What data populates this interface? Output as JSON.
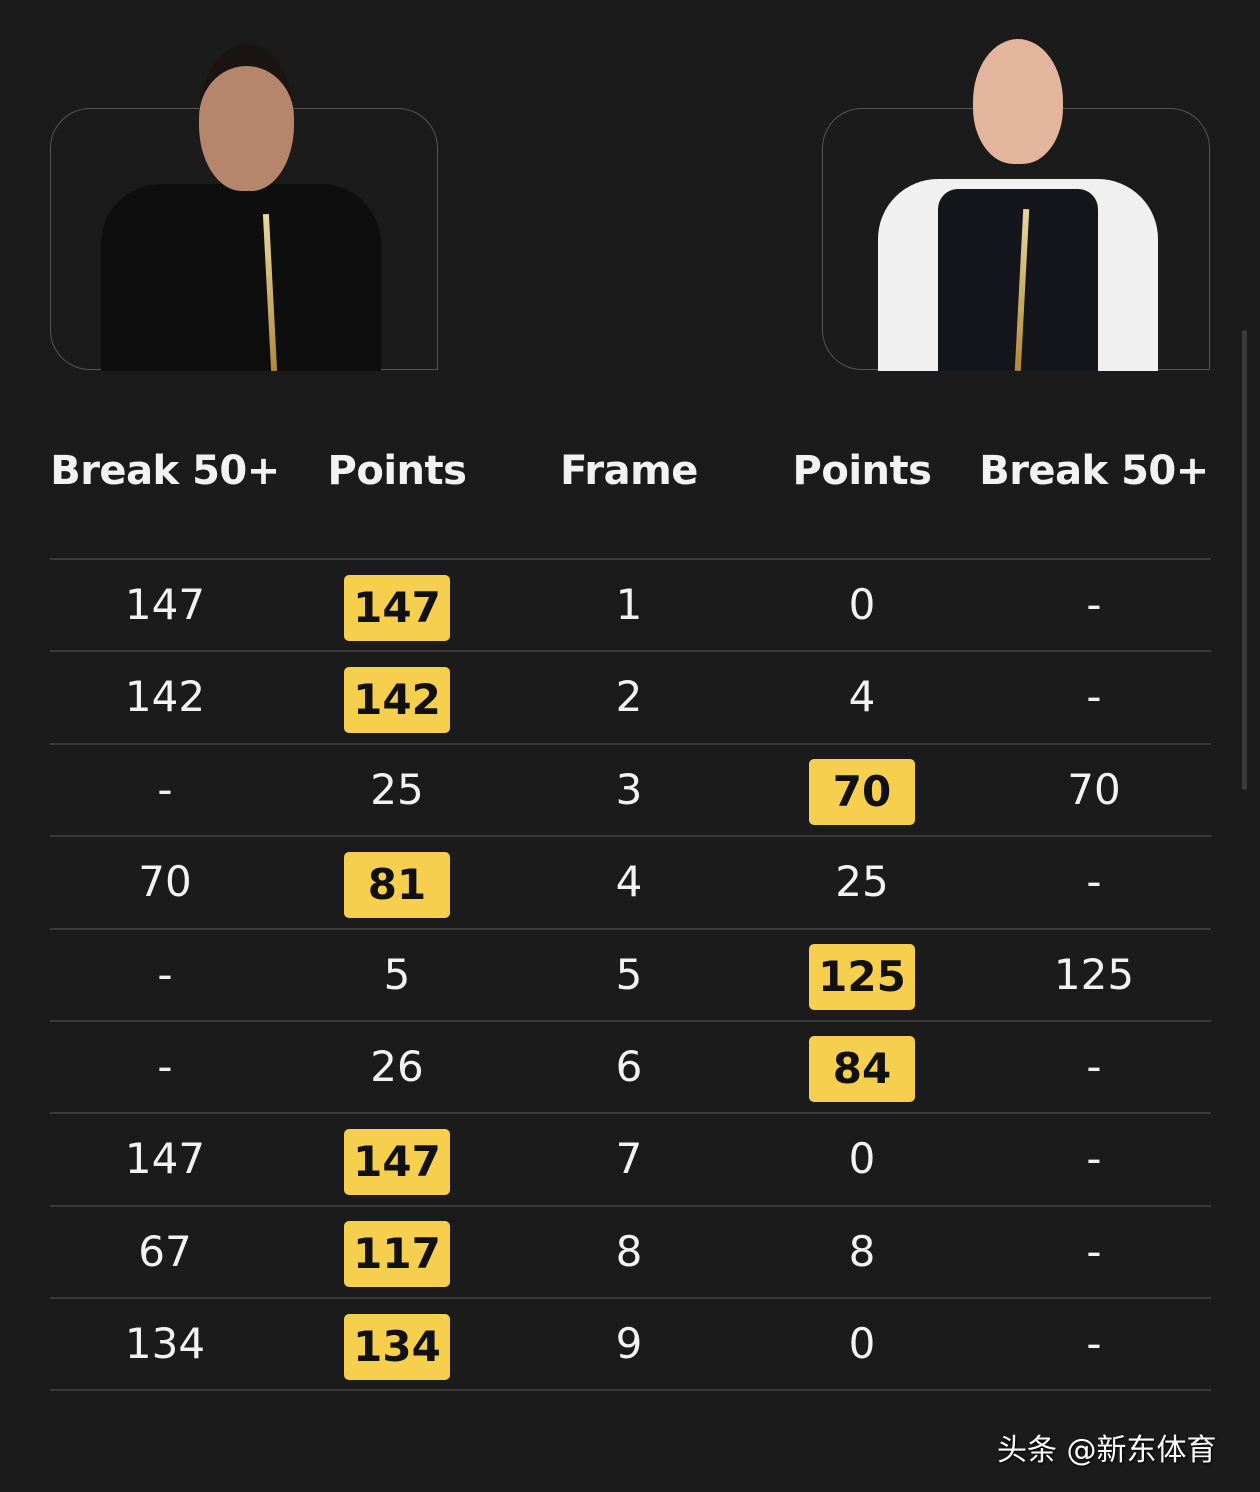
{
  "players": {
    "left": {
      "name_icon": "player-photo-left"
    },
    "right": {
      "name_icon": "player-photo-right"
    }
  },
  "headers": [
    "Break 50+",
    "Points",
    "Frame",
    "Points",
    "Break 50+"
  ],
  "highlight_color": "#f7cf4f",
  "rows": [
    {
      "lb": "147",
      "lp": "147",
      "f": "1",
      "rp": "0",
      "rb": "-",
      "winner": "left"
    },
    {
      "lb": "142",
      "lp": "142",
      "f": "2",
      "rp": "4",
      "rb": "-",
      "winner": "left"
    },
    {
      "lb": "-",
      "lp": "25",
      "f": "3",
      "rp": "70",
      "rb": "70",
      "winner": "right"
    },
    {
      "lb": "70",
      "lp": "81",
      "f": "4",
      "rp": "25",
      "rb": "-",
      "winner": "left"
    },
    {
      "lb": "-",
      "lp": "5",
      "f": "5",
      "rp": "125",
      "rb": "125",
      "winner": "right"
    },
    {
      "lb": "-",
      "lp": "26",
      "f": "6",
      "rp": "84",
      "rb": "-",
      "winner": "right"
    },
    {
      "lb": "147",
      "lp": "147",
      "f": "7",
      "rp": "0",
      "rb": "-",
      "winner": "left"
    },
    {
      "lb": "67",
      "lp": "117",
      "f": "8",
      "rp": "8",
      "rb": "-",
      "winner": "left"
    },
    {
      "lb": "134",
      "lp": "134",
      "f": "9",
      "rp": "0",
      "rb": "-",
      "winner": "left"
    }
  ],
  "watermark": "头条 @新东体育"
}
